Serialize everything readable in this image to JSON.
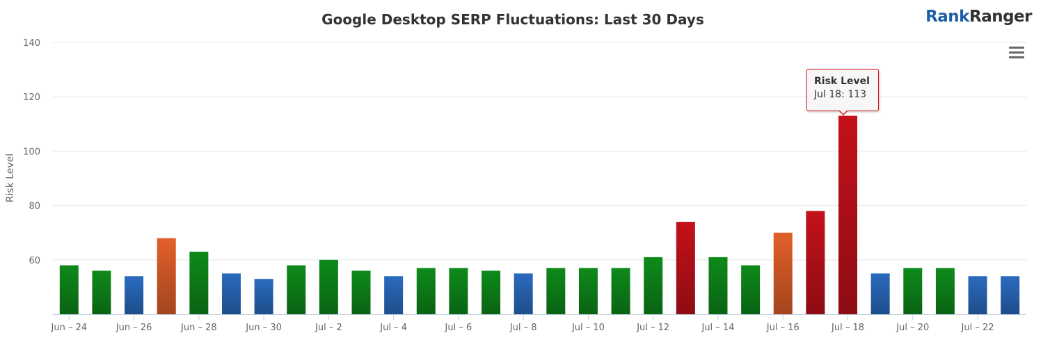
{
  "brand": {
    "part1": "Rank",
    "part2": "Ranger"
  },
  "menu": {
    "icon": "hamburger-menu-icon"
  },
  "tooltip": {
    "title": "Risk Level",
    "body": "Jul 18: 113"
  },
  "colors": {
    "green": "#0e8a1a",
    "blue": "#2a6bbf",
    "orange": "#e2602a",
    "red": "#c4111a"
  },
  "chart_data": {
    "type": "bar",
    "title": "Google Desktop SERP Fluctuations: Last 30 Days",
    "xlabel": "",
    "ylabel": "Risk Level",
    "ylim": [
      40,
      140
    ],
    "yticks": [
      60,
      80,
      100,
      120,
      140
    ],
    "grid": true,
    "categories": [
      "Jun 24",
      "Jun 25",
      "Jun 26",
      "Jun 27",
      "Jun 28",
      "Jun 29",
      "Jun 30",
      "Jul 1",
      "Jul 2",
      "Jul 3",
      "Jul 4",
      "Jul 5",
      "Jul 6",
      "Jul 7",
      "Jul 8",
      "Jul 9",
      "Jul 10",
      "Jul 11",
      "Jul 12",
      "Jul 13",
      "Jul 14",
      "Jul 15",
      "Jul 16",
      "Jul 17",
      "Jul 18",
      "Jul 19",
      "Jul 20",
      "Jul 21",
      "Jul 22",
      "Jul 23"
    ],
    "xtick_labels": [
      "Jun – 24",
      "Jun – 26",
      "Jun – 28",
      "Jun – 30",
      "Jul – 2",
      "Jul – 4",
      "Jul – 6",
      "Jul – 8",
      "Jul – 10",
      "Jul – 12",
      "Jul – 14",
      "Jul – 16",
      "Jul – 18",
      "Jul – 20",
      "Jul – 22"
    ],
    "series": [
      {
        "values": [
          58,
          56,
          54,
          68,
          63,
          55,
          53,
          58,
          60,
          56,
          54,
          57,
          57,
          56,
          55,
          57,
          57,
          57,
          61,
          74,
          61,
          58,
          70,
          78,
          113,
          55,
          57,
          57,
          54,
          54
        ],
        "levels": [
          "green",
          "green",
          "blue",
          "orange",
          "green",
          "blue",
          "blue",
          "green",
          "green",
          "green",
          "blue",
          "green",
          "green",
          "green",
          "blue",
          "green",
          "green",
          "green",
          "green",
          "red",
          "green",
          "green",
          "orange",
          "red",
          "red",
          "blue",
          "green",
          "green",
          "blue",
          "blue"
        ]
      }
    ]
  }
}
